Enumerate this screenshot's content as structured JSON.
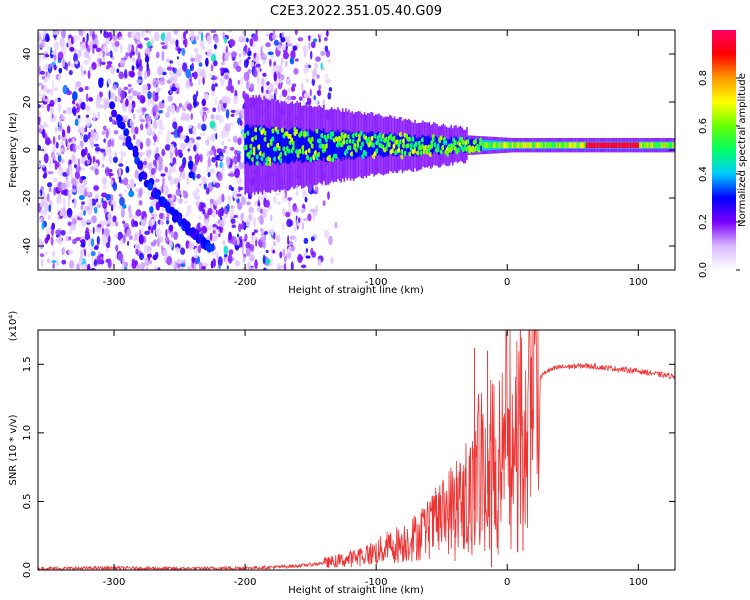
{
  "figure": {
    "title": "C2E3.2022.351.05.40.G09"
  },
  "chart_data": [
    {
      "type": "heatmap",
      "title": "C2E3.2022.351.05.40.G09",
      "xlabel": "Height of straight line (km)",
      "ylabel": "Frequency (Hz)",
      "xlim": [
        -358,
        128
      ],
      "ylim": [
        -50,
        50
      ],
      "xticks": [
        -300,
        -200,
        -100,
        0,
        100
      ],
      "yticks": [
        -40,
        -20,
        0,
        20,
        40
      ],
      "colorbar": {
        "label": "Normalized spectral amplitude",
        "range": [
          0,
          1
        ],
        "ticks": [
          "0.0",
          "0.2",
          "0.4",
          "0.6",
          "0.8"
        ],
        "colors": [
          "#ffffff",
          "#d8b8ff",
          "#7b00ff",
          "#0000ff",
          "#00ccff",
          "#00ff66",
          "#66ff00",
          "#ffff00",
          "#ff9900",
          "#ff0000",
          "#ff0066"
        ]
      },
      "features": [
        {
          "name": "noise",
          "x_range": [
            -358,
            -130
          ],
          "f_range": [
            -50,
            50
          ],
          "level": 0.15
        },
        {
          "name": "main-band",
          "x_start": -200,
          "x_end": 128,
          "f_center": 2,
          "f_width_start": 16,
          "f_width_end": 3
        },
        {
          "name": "slanted-streak",
          "points": [
            [
              -300,
              18
            ],
            [
              -270,
              -18
            ],
            [
              -245,
              -32
            ],
            [
              -225,
              -42
            ]
          ]
        }
      ]
    },
    {
      "type": "line",
      "xlabel": "Height of straight line (km)",
      "ylabel": "SNR (10 * v/v)",
      "yscale_note": "(x10⁴)",
      "xlim": [
        -358,
        128
      ],
      "ylim": [
        0,
        1.75
      ],
      "xticks": [
        -300,
        -200,
        -100,
        0,
        100
      ],
      "yticks": [
        "0.0",
        "0.5",
        "1.0",
        "1.5"
      ],
      "color": "#ee3333",
      "series_points": [
        [
          -358,
          0.01
        ],
        [
          -300,
          0.015
        ],
        [
          -250,
          0.01
        ],
        [
          -200,
          0.015
        ],
        [
          -180,
          0.02
        ],
        [
          -160,
          0.03
        ],
        [
          -140,
          0.05
        ],
        [
          -120,
          0.08
        ],
        [
          -100,
          0.13
        ],
        [
          -90,
          0.17
        ],
        [
          -80,
          0.2
        ],
        [
          -70,
          0.24
        ],
        [
          -60,
          0.3
        ],
        [
          -50,
          0.38
        ],
        [
          -40,
          0.48
        ],
        [
          -30,
          0.62
        ],
        [
          -20,
          0.82
        ],
        [
          -14,
          0.95
        ],
        [
          -10,
          1.0
        ],
        [
          -5,
          1.05
        ],
        [
          0,
          1.08
        ],
        [
          5,
          0.98
        ],
        [
          10,
          1.05
        ],
        [
          15,
          1.2
        ],
        [
          20,
          1.32
        ],
        [
          25,
          1.4
        ],
        [
          30,
          1.45
        ],
        [
          40,
          1.48
        ],
        [
          60,
          1.49
        ],
        [
          80,
          1.47
        ],
        [
          100,
          1.45
        ],
        [
          120,
          1.42
        ],
        [
          128,
          1.41
        ]
      ],
      "spikes": [
        [
          -25,
          1.62
        ],
        [
          -15,
          1.6
        ],
        [
          10,
          1.75
        ],
        [
          -12,
          0.02
        ],
        [
          12,
          0.14
        ]
      ]
    }
  ]
}
